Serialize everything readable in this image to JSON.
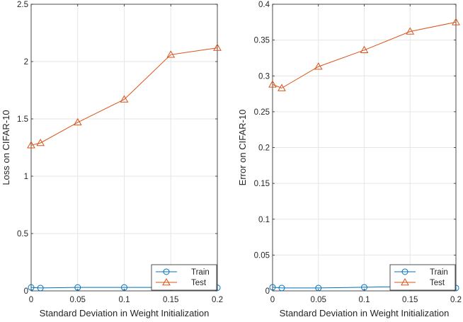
{
  "chart_data": [
    {
      "type": "line",
      "xlabel": "Standard Deviation in Weight Initialization",
      "ylabel": "Loss on CIFAR-10",
      "xlim": [
        0,
        0.2
      ],
      "ylim": [
        0,
        2.5
      ],
      "xticks": [
        0,
        0.05,
        0.1,
        0.15,
        0.2
      ],
      "yticks": [
        0,
        0.5,
        1,
        1.5,
        2,
        2.5
      ],
      "grid": true,
      "legend_position": "bottom-right",
      "series": [
        {
          "name": "Train",
          "marker": "circle",
          "color": "#0072BD",
          "x": [
            0,
            0.01,
            0.05,
            0.1,
            0.15,
            0.2
          ],
          "y": [
            0.03,
            0.025,
            0.03,
            0.03,
            0.03,
            0.027
          ]
        },
        {
          "name": "Test",
          "marker": "triangle",
          "color": "#D95319",
          "x": [
            0,
            0.01,
            0.05,
            0.1,
            0.15,
            0.2
          ],
          "y": [
            1.27,
            1.29,
            1.47,
            1.67,
            2.06,
            2.12
          ]
        }
      ]
    },
    {
      "type": "line",
      "xlabel": "Standard Deviation in Weight Initialization",
      "ylabel": "Error on CIFAR-10",
      "xlim": [
        0,
        0.2
      ],
      "ylim": [
        0,
        0.4
      ],
      "xticks": [
        0,
        0.05,
        0.1,
        0.15,
        0.2
      ],
      "yticks": [
        0,
        0.05,
        0.1,
        0.15,
        0.2,
        0.25,
        0.3,
        0.35,
        0.4
      ],
      "grid": true,
      "legend_position": "bottom-right",
      "series": [
        {
          "name": "Train",
          "marker": "circle",
          "color": "#0072BD",
          "x": [
            0,
            0.01,
            0.05,
            0.1,
            0.15,
            0.2
          ],
          "y": [
            0.005,
            0.004,
            0.004,
            0.005,
            0.006,
            0.004
          ]
        },
        {
          "name": "Test",
          "marker": "triangle",
          "color": "#D95319",
          "x": [
            0,
            0.01,
            0.05,
            0.1,
            0.15,
            0.2
          ],
          "y": [
            0.288,
            0.283,
            0.313,
            0.336,
            0.362,
            0.375
          ]
        }
      ]
    }
  ]
}
